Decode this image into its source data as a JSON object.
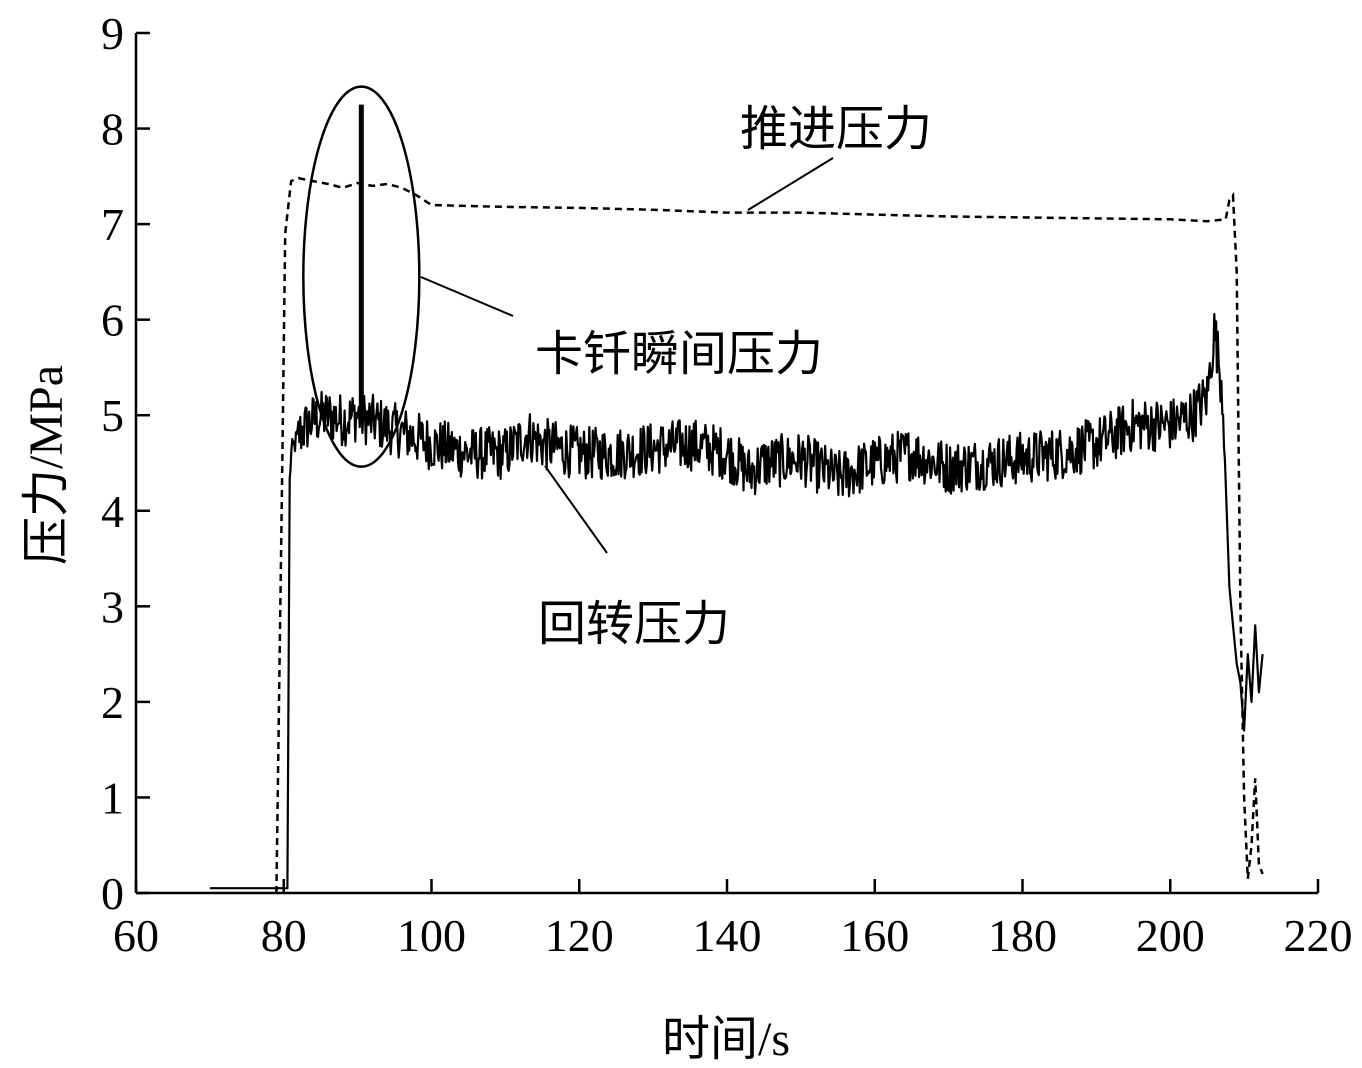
{
  "chart_data": {
    "type": "line",
    "title": "",
    "xlabel": "时间/s",
    "ylabel": "压力/MPa",
    "xlim": [
      60,
      220
    ],
    "ylim": [
      0,
      9
    ],
    "xticks": [
      60,
      80,
      100,
      120,
      140,
      160,
      180,
      200,
      220
    ],
    "yticks": [
      0,
      1,
      2,
      3,
      4,
      5,
      6,
      7,
      8,
      9
    ],
    "grid": false,
    "legend": "none",
    "series": [
      {
        "name": "推进压力",
        "style": "dashed",
        "color": "#000000",
        "x": [
          79,
          79.8,
          80.2,
          81,
          82,
          84,
          86,
          88,
          90,
          92,
          94,
          96,
          98,
          100,
          110,
          120,
          130,
          140,
          150,
          160,
          170,
          180,
          190,
          200,
          205,
          207.5,
          208,
          208.5,
          209,
          209.5,
          210,
          210.5,
          211,
          211.5,
          212,
          212.5
        ],
        "y": [
          0,
          4.5,
          6.9,
          7.45,
          7.48,
          7.45,
          7.42,
          7.38,
          7.43,
          7.4,
          7.42,
          7.38,
          7.3,
          7.2,
          7.18,
          7.17,
          7.15,
          7.12,
          7.12,
          7.1,
          7.08,
          7.07,
          7.06,
          7.05,
          7.03,
          7.05,
          7.25,
          7.3,
          6.5,
          3.0,
          1.0,
          0.15,
          0.5,
          1.2,
          0.3,
          0.2
        ]
      },
      {
        "name": "回转压力",
        "style": "solid",
        "color": "#000000",
        "x": [
          70,
          75,
          80.5,
          80.8,
          81,
          82,
          84,
          86,
          88,
          90,
          95,
          100,
          105,
          110,
          113,
          115,
          120,
          125,
          130,
          135,
          140,
          143,
          145,
          150,
          155,
          160,
          165,
          170,
          175,
          180,
          185,
          190,
          195,
          200,
          203,
          205,
          206,
          207,
          207.5,
          208,
          208.5,
          209,
          209.5,
          210,
          210.5,
          211,
          211.5,
          212,
          212.5
        ],
        "y": [
          0.05,
          0.05,
          0.05,
          4.3,
          4.6,
          4.8,
          4.95,
          5.0,
          4.95,
          5.0,
          4.85,
          4.7,
          4.6,
          4.6,
          4.8,
          4.7,
          4.6,
          4.6,
          4.65,
          4.7,
          4.6,
          4.4,
          4.5,
          4.55,
          4.35,
          4.5,
          4.6,
          4.45,
          4.5,
          4.55,
          4.6,
          4.7,
          4.9,
          4.9,
          5.0,
          5.2,
          5.9,
          5.3,
          4.6,
          3.2,
          2.8,
          2.4,
          2.2,
          1.7,
          2.5,
          2.0,
          2.8,
          2.1,
          2.5
        ]
      },
      {
        "name": "卡钎瞬间压力",
        "style": "solid",
        "color": "#000000",
        "x": [
          90.5,
          90.5
        ],
        "y": [
          5.0,
          8.25
        ]
      }
    ],
    "annotations": [
      {
        "text": "推进压力",
        "x": 145,
        "y": 7.1
      },
      {
        "text": "卡钎瞬间压力",
        "x": 92,
        "y": 6.3
      },
      {
        "text": "回转压力",
        "x": 115,
        "y": 4.5
      }
    ]
  }
}
